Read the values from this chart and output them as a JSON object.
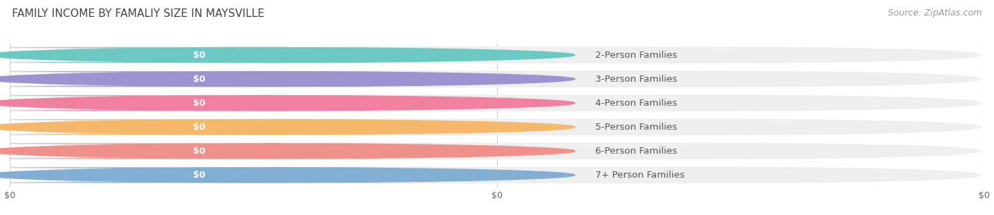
{
  "title": "FAMILY INCOME BY FAMALIY SIZE IN MAYSVILLE",
  "source": "Source: ZipAtlas.com",
  "categories": [
    "2-Person Families",
    "3-Person Families",
    "4-Person Families",
    "5-Person Families",
    "6-Person Families",
    "7+ Person Families"
  ],
  "values": [
    0,
    0,
    0,
    0,
    0,
    0
  ],
  "bar_colors": [
    "#6cc8c2",
    "#9b94d1",
    "#f07fa0",
    "#f5b86a",
    "#f0908a",
    "#82aed4"
  ],
  "background_color": "#ffffff",
  "bar_bg_color": "#efefef",
  "label_pill_bg": "#f8f8f8",
  "title_color": "#444444",
  "label_color": "#555555",
  "value_label_color": "#ffffff",
  "source_color": "#999999",
  "title_fontsize": 11,
  "label_fontsize": 9.5,
  "value_fontsize": 9,
  "source_fontsize": 9,
  "tick_fontsize": 9,
  "n_ticks": 3,
  "tick_labels": [
    "$0",
    "$0",
    "$0"
  ]
}
